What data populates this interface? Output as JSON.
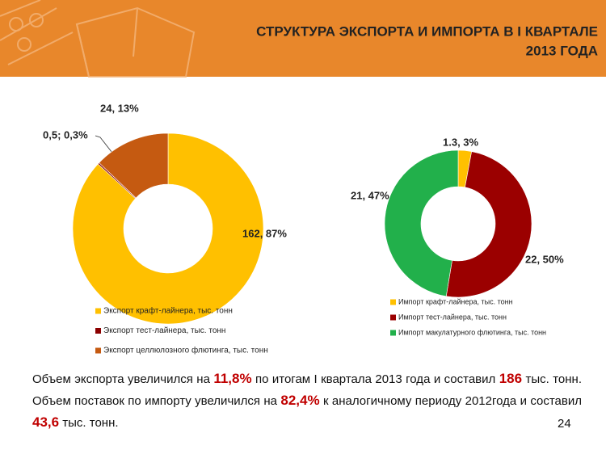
{
  "header": {
    "title_lines": [
      "СТРУКТУРА ЭКСПОРТА И ИМПОРТА В I КВАРТАЛЕ",
      "2013 ГОДА"
    ]
  },
  "chart_data": [
    {
      "type": "donut",
      "categories": [
        "Экспорт крафт-лайнера, тыс. тонн",
        "Экспорт тест-лайнера, тыс. тонн",
        "Экспорт целлюлозного флютинга, тыс. тонн"
      ],
      "values": [
        162,
        0.5,
        24
      ],
      "value_labels": [
        "162, 87%",
        "0,5; 0,3%",
        "24, 13%"
      ],
      "colors": [
        "#FFC000",
        "#8B0000",
        "#C55A11"
      ]
    },
    {
      "type": "donut",
      "categories": [
        "Импорт крафт-лайнера, тыс. тонн",
        "Импорт тест-лайнера, тыс. тонн",
        "Импорт макулатурного флютинга, тыс. тонн"
      ],
      "values": [
        1.3,
        22,
        21
      ],
      "value_labels": [
        "1.3, 3%",
        "22, 50%",
        "21, 47%"
      ],
      "colors": [
        "#FFC000",
        "#9B0000",
        "#22B04B"
      ]
    }
  ],
  "summary": {
    "segments": [
      {
        "text": "Объем экспорта увеличился на "
      },
      {
        "text": "11,8%",
        "highlight": true
      },
      {
        "text": " по итогам I квартала 2013 года и составил "
      },
      {
        "text": "186",
        "highlight": true
      },
      {
        "text": " тыс. тонн. Объем поставок по импорту увеличился на "
      },
      {
        "text": "82,4%",
        "highlight": true
      },
      {
        "text": " к аналогичному периоду 2012года и составил "
      },
      {
        "text": "43,6",
        "highlight": true
      },
      {
        "text": " тыс. тонн."
      }
    ]
  },
  "page_number": 24
}
